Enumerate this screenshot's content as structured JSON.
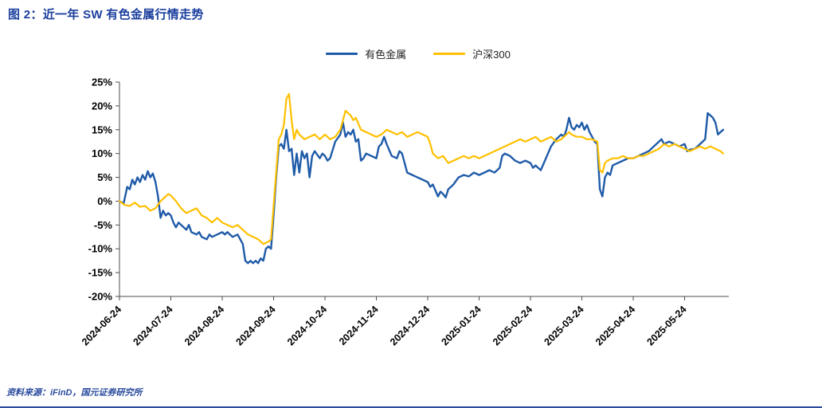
{
  "page": {
    "title": "图 2：近一年 SW 有色金属行情走势",
    "source_note": "资料来源：iFinD，国元证券研究所"
  },
  "chart_data": {
    "type": "line",
    "title": "近一年 SW 有色金属行情走势",
    "xlabel": "",
    "ylabel": "",
    "y_unit": "%",
    "ylim": [
      -20,
      25
    ],
    "y_ticks": [
      25,
      20,
      15,
      10,
      5,
      0,
      -5,
      -10,
      -15,
      -20
    ],
    "grid": false,
    "legend_position": "top",
    "x_unit": "months since 2024-06-24",
    "x_tick_labels": [
      "2024-06-24",
      "2024-07-24",
      "2024-08-24",
      "2024-09-24",
      "2024-10-24",
      "2024-11-24",
      "2024-12-24",
      "2025-01-24",
      "2025-02-24",
      "2025-03-24",
      "2025-04-24",
      "2025-05-24"
    ],
    "series": [
      {
        "name": "有色金属",
        "color": "#1F5BA8",
        "points": [
          [
            0,
            0
          ],
          [
            0.08,
            -0.5
          ],
          [
            0.15,
            3
          ],
          [
            0.2,
            2.5
          ],
          [
            0.25,
            4.5
          ],
          [
            0.3,
            3.5
          ],
          [
            0.35,
            5
          ],
          [
            0.4,
            4
          ],
          [
            0.45,
            5.5
          ],
          [
            0.5,
            4.5
          ],
          [
            0.55,
            6.3
          ],
          [
            0.6,
            5
          ],
          [
            0.65,
            5.8
          ],
          [
            0.7,
            4
          ],
          [
            0.75,
            1
          ],
          [
            0.8,
            -3.5
          ],
          [
            0.85,
            -2
          ],
          [
            0.9,
            -3
          ],
          [
            0.95,
            -2.5
          ],
          [
            1,
            -3
          ],
          [
            1.05,
            -4.5
          ],
          [
            1.1,
            -5.5
          ],
          [
            1.15,
            -4.5
          ],
          [
            1.2,
            -5
          ],
          [
            1.3,
            -6
          ],
          [
            1.35,
            -5
          ],
          [
            1.4,
            -6.5
          ],
          [
            1.5,
            -7
          ],
          [
            1.55,
            -6.5
          ],
          [
            1.6,
            -7.5
          ],
          [
            1.7,
            -8
          ],
          [
            1.75,
            -7
          ],
          [
            1.8,
            -7.5
          ],
          [
            1.9,
            -7
          ],
          [
            2,
            -6.5
          ],
          [
            2.05,
            -7
          ],
          [
            2.1,
            -6.5
          ],
          [
            2.2,
            -7.5
          ],
          [
            2.3,
            -7
          ],
          [
            2.35,
            -8
          ],
          [
            2.4,
            -9
          ],
          [
            2.45,
            -12.5
          ],
          [
            2.5,
            -13
          ],
          [
            2.55,
            -12.5
          ],
          [
            2.6,
            -13
          ],
          [
            2.65,
            -12.5
          ],
          [
            2.7,
            -13
          ],
          [
            2.75,
            -12
          ],
          [
            2.8,
            -12.5
          ],
          [
            2.85,
            -10
          ],
          [
            2.9,
            -9.5
          ],
          [
            2.95,
            -10
          ],
          [
            3,
            -3
          ],
          [
            3.05,
            5
          ],
          [
            3.1,
            11.5
          ],
          [
            3.15,
            12
          ],
          [
            3.2,
            11
          ],
          [
            3.25,
            15
          ],
          [
            3.3,
            10.5
          ],
          [
            3.35,
            11
          ],
          [
            3.4,
            5.5
          ],
          [
            3.45,
            10
          ],
          [
            3.5,
            6
          ],
          [
            3.55,
            10.5
          ],
          [
            3.6,
            9
          ],
          [
            3.65,
            10
          ],
          [
            3.7,
            5
          ],
          [
            3.75,
            9.5
          ],
          [
            3.8,
            10.5
          ],
          [
            3.9,
            9
          ],
          [
            3.95,
            10
          ],
          [
            4,
            9.5
          ],
          [
            4.05,
            8.5
          ],
          [
            4.1,
            9
          ],
          [
            4.2,
            12.5
          ],
          [
            4.3,
            14
          ],
          [
            4.35,
            16.5
          ],
          [
            4.4,
            13.5
          ],
          [
            4.45,
            14.5
          ],
          [
            4.5,
            14
          ],
          [
            4.55,
            15
          ],
          [
            4.6,
            12.5
          ],
          [
            4.65,
            13
          ],
          [
            4.7,
            8.5
          ],
          [
            4.75,
            9
          ],
          [
            4.8,
            10
          ],
          [
            4.9,
            9.5
          ],
          [
            5,
            9
          ],
          [
            5.05,
            11.5
          ],
          [
            5.1,
            12
          ],
          [
            5.15,
            13.5
          ],
          [
            5.2,
            12
          ],
          [
            5.3,
            9.5
          ],
          [
            5.4,
            9
          ],
          [
            5.45,
            10.5
          ],
          [
            5.5,
            10
          ],
          [
            5.6,
            6
          ],
          [
            5.7,
            5.5
          ],
          [
            5.8,
            5
          ],
          [
            5.9,
            4.5
          ],
          [
            6,
            4
          ],
          [
            6.05,
            3
          ],
          [
            6.1,
            3.5
          ],
          [
            6.2,
            1
          ],
          [
            6.25,
            2
          ],
          [
            6.3,
            1.5
          ],
          [
            6.35,
            0.8
          ],
          [
            6.4,
            2.5
          ],
          [
            6.5,
            3.5
          ],
          [
            6.6,
            5
          ],
          [
            6.7,
            5.5
          ],
          [
            6.8,
            5.2
          ],
          [
            6.9,
            6
          ],
          [
            7,
            5.5
          ],
          [
            7.1,
            6
          ],
          [
            7.2,
            6.5
          ],
          [
            7.3,
            6
          ],
          [
            7.4,
            7
          ],
          [
            7.45,
            9.5
          ],
          [
            7.5,
            10
          ],
          [
            7.6,
            9.5
          ],
          [
            7.7,
            8.5
          ],
          [
            7.8,
            8
          ],
          [
            7.9,
            8.5
          ],
          [
            8,
            8
          ],
          [
            8.05,
            7
          ],
          [
            8.1,
            7.5
          ],
          [
            8.2,
            6.5
          ],
          [
            8.3,
            9
          ],
          [
            8.4,
            11.5
          ],
          [
            8.5,
            13
          ],
          [
            8.6,
            14
          ],
          [
            8.65,
            13.5
          ],
          [
            8.7,
            15
          ],
          [
            8.75,
            17.5
          ],
          [
            8.8,
            15.5
          ],
          [
            8.85,
            15
          ],
          [
            8.9,
            16
          ],
          [
            8.95,
            15.5
          ],
          [
            9,
            16.5
          ],
          [
            9.05,
            15
          ],
          [
            9.1,
            16
          ],
          [
            9.15,
            14.5
          ],
          [
            9.2,
            13.5
          ],
          [
            9.25,
            12.5
          ],
          [
            9.3,
            12
          ],
          [
            9.35,
            2.5
          ],
          [
            9.4,
            1
          ],
          [
            9.45,
            5
          ],
          [
            9.5,
            6
          ],
          [
            9.55,
            5.5
          ],
          [
            9.6,
            7.5
          ],
          [
            9.7,
            8
          ],
          [
            9.8,
            8.5
          ],
          [
            9.9,
            9
          ],
          [
            10,
            9
          ],
          [
            10.1,
            9.5
          ],
          [
            10.2,
            10
          ],
          [
            10.3,
            10.5
          ],
          [
            10.4,
            11.5
          ],
          [
            10.5,
            12.5
          ],
          [
            10.55,
            13
          ],
          [
            10.6,
            12
          ],
          [
            10.7,
            12.5
          ],
          [
            10.8,
            12
          ],
          [
            10.9,
            11.5
          ],
          [
            11,
            12
          ],
          [
            11.05,
            10.5
          ],
          [
            11.1,
            10.8
          ],
          [
            11.2,
            11
          ],
          [
            11.3,
            12
          ],
          [
            11.4,
            13
          ],
          [
            11.45,
            18.5
          ],
          [
            11.5,
            18
          ],
          [
            11.55,
            17.5
          ],
          [
            11.6,
            16.5
          ],
          [
            11.65,
            14
          ],
          [
            11.7,
            14.5
          ],
          [
            11.75,
            15
          ]
        ]
      },
      {
        "name": "沪深300",
        "color": "#FFC000",
        "points": [
          [
            0,
            0
          ],
          [
            0.1,
            -0.8
          ],
          [
            0.2,
            -1
          ],
          [
            0.3,
            -0.3
          ],
          [
            0.4,
            -1.2
          ],
          [
            0.5,
            -1
          ],
          [
            0.6,
            -2
          ],
          [
            0.7,
            -1.5
          ],
          [
            0.8,
            0
          ],
          [
            0.9,
            1
          ],
          [
            0.95,
            1.5
          ],
          [
            1,
            1.2
          ],
          [
            1.1,
            0
          ],
          [
            1.2,
            -1.5
          ],
          [
            1.3,
            -2.5
          ],
          [
            1.4,
            -2
          ],
          [
            1.5,
            -1.5
          ],
          [
            1.6,
            -3
          ],
          [
            1.7,
            -3.5
          ],
          [
            1.8,
            -4.5
          ],
          [
            1.9,
            -3.5
          ],
          [
            2,
            -4.5
          ],
          [
            2.1,
            -5
          ],
          [
            2.2,
            -5.5
          ],
          [
            2.3,
            -5
          ],
          [
            2.4,
            -6
          ],
          [
            2.5,
            -7
          ],
          [
            2.6,
            -7.5
          ],
          [
            2.7,
            -8
          ],
          [
            2.8,
            -9
          ],
          [
            2.9,
            -8.5
          ],
          [
            2.95,
            -8
          ],
          [
            3,
            -1
          ],
          [
            3.05,
            6
          ],
          [
            3.1,
            13
          ],
          [
            3.15,
            14
          ],
          [
            3.2,
            16
          ],
          [
            3.25,
            21.5
          ],
          [
            3.3,
            22.5
          ],
          [
            3.35,
            17
          ],
          [
            3.4,
            13
          ],
          [
            3.45,
            15
          ],
          [
            3.5,
            14
          ],
          [
            3.55,
            13.5
          ],
          [
            3.6,
            13
          ],
          [
            3.7,
            13.5
          ],
          [
            3.8,
            14
          ],
          [
            3.9,
            13
          ],
          [
            4,
            14
          ],
          [
            4.1,
            13
          ],
          [
            4.2,
            13.5
          ],
          [
            4.3,
            15
          ],
          [
            4.35,
            17
          ],
          [
            4.4,
            19
          ],
          [
            4.45,
            18.5
          ],
          [
            4.5,
            18
          ],
          [
            4.55,
            17
          ],
          [
            4.6,
            17.5
          ],
          [
            4.7,
            15
          ],
          [
            4.8,
            14.5
          ],
          [
            4.9,
            14
          ],
          [
            5,
            13.5
          ],
          [
            5.1,
            14
          ],
          [
            5.2,
            15
          ],
          [
            5.3,
            14.5
          ],
          [
            5.4,
            14
          ],
          [
            5.5,
            14.5
          ],
          [
            5.6,
            13.5
          ],
          [
            5.7,
            14
          ],
          [
            5.8,
            14.5
          ],
          [
            5.9,
            14
          ],
          [
            6,
            13.5
          ],
          [
            6.05,
            12
          ],
          [
            6.1,
            10
          ],
          [
            6.2,
            9
          ],
          [
            6.3,
            9.5
          ],
          [
            6.4,
            8
          ],
          [
            6.5,
            8.5
          ],
          [
            6.6,
            9
          ],
          [
            6.7,
            9.5
          ],
          [
            6.8,
            9
          ],
          [
            6.9,
            9.5
          ],
          [
            7,
            9
          ],
          [
            7.1,
            9.5
          ],
          [
            7.2,
            10
          ],
          [
            7.3,
            10.5
          ],
          [
            7.4,
            11
          ],
          [
            7.5,
            11.5
          ],
          [
            7.6,
            12
          ],
          [
            7.7,
            12.5
          ],
          [
            7.8,
            13
          ],
          [
            7.9,
            12.5
          ],
          [
            8,
            13
          ],
          [
            8.1,
            13.5
          ],
          [
            8.2,
            12.5
          ],
          [
            8.3,
            13
          ],
          [
            8.4,
            13.5
          ],
          [
            8.5,
            12.5
          ],
          [
            8.6,
            13
          ],
          [
            8.7,
            14
          ],
          [
            8.75,
            14.5
          ],
          [
            8.8,
            14
          ],
          [
            8.9,
            13.5
          ],
          [
            9,
            13.5
          ],
          [
            9.1,
            13
          ],
          [
            9.2,
            13
          ],
          [
            9.3,
            12.5
          ],
          [
            9.35,
            6.5
          ],
          [
            9.4,
            6
          ],
          [
            9.45,
            8
          ],
          [
            9.5,
            8.5
          ],
          [
            9.6,
            9
          ],
          [
            9.7,
            9
          ],
          [
            9.8,
            9.5
          ],
          [
            9.9,
            9
          ],
          [
            10,
            9
          ],
          [
            10.1,
            9.5
          ],
          [
            10.2,
            9.5
          ],
          [
            10.3,
            10
          ],
          [
            10.4,
            10.5
          ],
          [
            10.5,
            11
          ],
          [
            10.6,
            12
          ],
          [
            10.7,
            11.5
          ],
          [
            10.8,
            12
          ],
          [
            10.9,
            11.5
          ],
          [
            11,
            11
          ],
          [
            11.1,
            10.5
          ],
          [
            11.2,
            11
          ],
          [
            11.3,
            11.5
          ],
          [
            11.4,
            11
          ],
          [
            11.5,
            11.5
          ],
          [
            11.6,
            11
          ],
          [
            11.7,
            10.5
          ],
          [
            11.75,
            10
          ]
        ]
      }
    ]
  }
}
